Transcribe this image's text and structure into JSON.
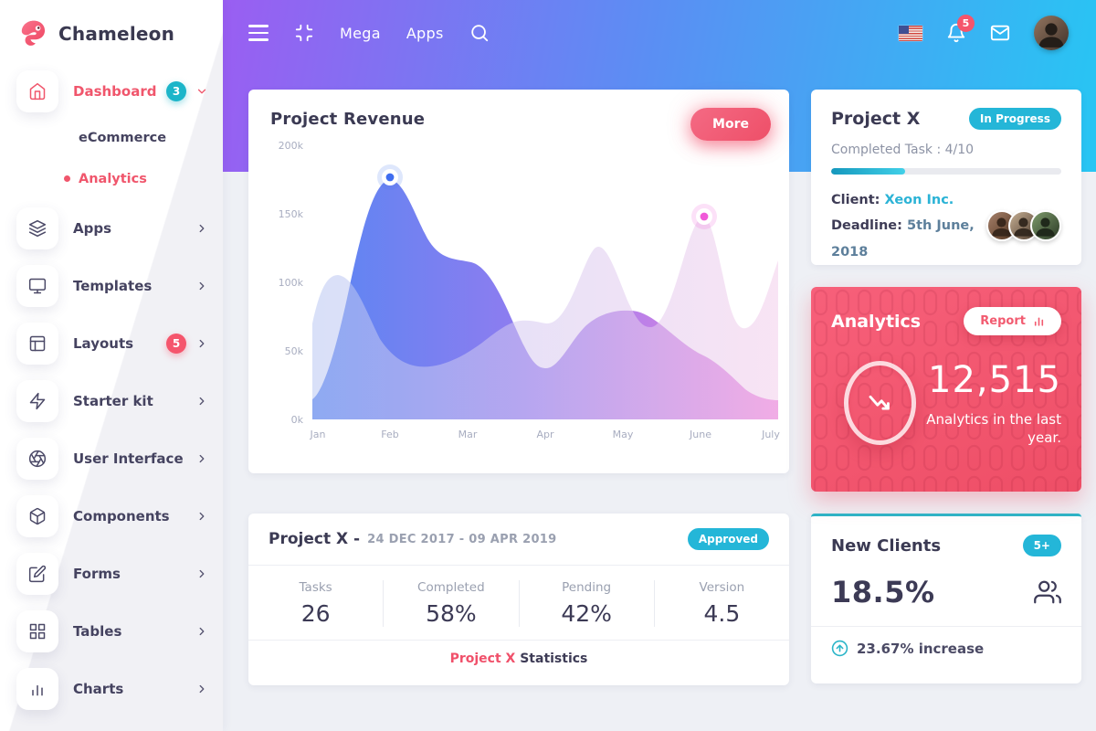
{
  "app": {
    "name": "Chameleon"
  },
  "topbar": {
    "nav_mega": "Mega",
    "nav_apps": "Apps",
    "notification_count": "5",
    "icons": [
      "hamburger-icon",
      "minimize-icon",
      "search-icon",
      "us-flag",
      "bell-icon",
      "mail-icon",
      "user-avatar"
    ]
  },
  "sidebar": {
    "items": [
      {
        "label": "Dashboard",
        "badge": "3",
        "state": "active-expanded"
      },
      {
        "label": "Apps"
      },
      {
        "label": "Templates"
      },
      {
        "label": "Layouts",
        "badge": "5"
      },
      {
        "label": "Starter kit"
      },
      {
        "label": "User Interface"
      },
      {
        "label": "Components"
      },
      {
        "label": "Forms"
      },
      {
        "label": "Tables"
      },
      {
        "label": "Charts"
      }
    ],
    "dashboard_children": [
      {
        "label": "eCommerce"
      },
      {
        "label": "Analytics",
        "state": "active"
      }
    ]
  },
  "revenue_card": {
    "title": "Project Revenue",
    "more_label": "More"
  },
  "chart_data": {
    "type": "area",
    "title": "Project Revenue",
    "categories": [
      "Jan",
      "Feb",
      "Mar",
      "Apr",
      "May",
      "June",
      "July"
    ],
    "y_tick_labels": [
      "200k",
      "150k",
      "100k",
      "50k",
      "0k"
    ],
    "ylim": [
      0,
      200000
    ],
    "unit": "thousands",
    "grid": false,
    "legend": "none",
    "series": [
      {
        "name": "current-period",
        "style": "saturated blue-purple-pink gradient area",
        "values_k": [
          15,
          175,
          118,
          38,
          78,
          48,
          15
        ]
      },
      {
        "name": "previous-period",
        "style": "translucent lavender area",
        "values_k": [
          105,
          60,
          55,
          70,
          125,
          148,
          117
        ]
      }
    ],
    "markers": [
      {
        "series": "current-period",
        "x": "Feb",
        "value_k": 175,
        "color": "#3f6df0"
      },
      {
        "series": "previous-period",
        "x": "June",
        "value_k": 148,
        "color": "#f05ad8"
      }
    ]
  },
  "project_card": {
    "title": "Project X",
    "status_badge": "In Progress",
    "task_label": "Completed Task : 4/10",
    "progress_pct": "32",
    "client_label": "Client:",
    "client_name": "Xeon Inc.",
    "deadline_label": "Deadline:",
    "deadline_value": "5th June, 2018",
    "team_avatars": 3
  },
  "analytics_card": {
    "title": "Analytics",
    "report_label": "Report",
    "value": "12,515",
    "caption": "Analytics in the last year.",
    "trend": "down"
  },
  "stats_card": {
    "title": "Project X -",
    "dates": "24 DEC 2017 - 09 APR 2019",
    "badge": "Approved",
    "stats": [
      {
        "label": "Tasks",
        "value": "26"
      },
      {
        "label": "Completed",
        "value": "58%"
      },
      {
        "label": "Pending",
        "value": "42%"
      },
      {
        "label": "Version",
        "value": "4.5"
      }
    ],
    "footer_accent": "Project X",
    "footer_rest": " Statistics"
  },
  "clients_card": {
    "title": "New Clients",
    "badge": "5+",
    "value": "18.5%",
    "footer": "23.67% increase"
  },
  "colors": {
    "accent_red": "#f0506a",
    "accent_cyan": "#24b6d8",
    "header_gradient": [
      "#9a5ef2",
      "#5b8ef3",
      "#27c6f3"
    ],
    "analytics_bg": "#f2566d",
    "text_dark": "#3b3a53",
    "text_muted": "#9aa0b0",
    "bg": "#eef0f5"
  }
}
